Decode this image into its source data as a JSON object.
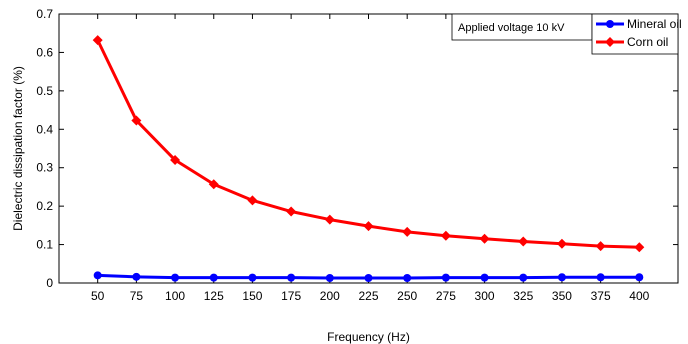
{
  "chart_data": {
    "type": "line",
    "title": "",
    "xlabel": "Frequency (Hz)",
    "ylabel": "Dielectric dissipation factor (%)",
    "x": [
      50,
      75,
      100,
      125,
      150,
      175,
      200,
      225,
      250,
      275,
      300,
      325,
      350,
      375,
      400
    ],
    "xlim": [
      25,
      425
    ],
    "ylim": [
      0,
      0.7
    ],
    "yticks": [
      0,
      0.1,
      0.2,
      0.3,
      0.4,
      0.5,
      0.6,
      0.7
    ],
    "ytick_labels": [
      "0",
      "0.1",
      "0.2",
      "0.3",
      "0.4",
      "0.5",
      "0.6",
      "0.7"
    ],
    "xtick_labels": [
      "50",
      "75",
      "100",
      "125",
      "150",
      "175",
      "200",
      "225",
      "250",
      "275",
      "300",
      "325",
      "350",
      "375",
      "400"
    ],
    "grid": false,
    "legend_position": "top-right",
    "annotation": "Applied voltage 10 kV",
    "series": [
      {
        "name": "Mineral oil",
        "color": "#0000ff",
        "marker": "circle",
        "values": [
          0.02,
          0.016,
          0.014,
          0.014,
          0.014,
          0.014,
          0.013,
          0.013,
          0.013,
          0.014,
          0.014,
          0.014,
          0.015,
          0.015,
          0.015
        ]
      },
      {
        "name": "Corn oil",
        "color": "#ff0000",
        "marker": "diamond",
        "values": [
          0.632,
          0.423,
          0.32,
          0.257,
          0.215,
          0.186,
          0.165,
          0.148,
          0.133,
          0.123,
          0.115,
          0.108,
          0.102,
          0.096,
          0.093
        ]
      }
    ]
  }
}
